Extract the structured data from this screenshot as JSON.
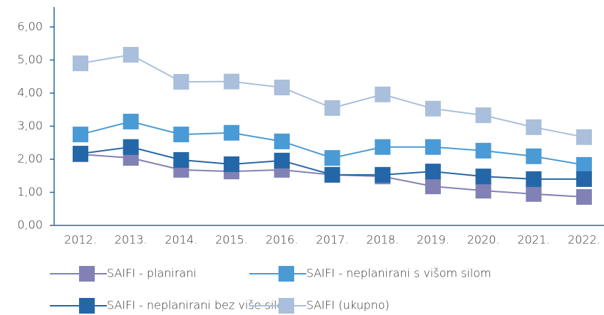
{
  "chart_data": {
    "type": "line",
    "categories": [
      "2012.",
      "2013.",
      "2014.",
      "2015.",
      "2016.",
      "2017.",
      "2018.",
      "2019.",
      "2020.",
      "2021.",
      "2022."
    ],
    "series": [
      {
        "name": "SAIFI - planirani",
        "color": "#8181b5",
        "values": [
          2.15,
          2.04,
          1.68,
          1.63,
          1.68,
          1.53,
          1.48,
          1.18,
          1.05,
          0.95,
          0.86
        ]
      },
      {
        "name": "SAIFI - neplanirani s višom silom",
        "color": "#4a9ad6",
        "values": [
          2.75,
          3.14,
          2.75,
          2.8,
          2.54,
          2.04,
          2.37,
          2.37,
          2.26,
          2.09,
          1.83
        ]
      },
      {
        "name": "SAIFI - neplanirani bez više silom",
        "color": "#2467a8",
        "values": [
          2.17,
          2.37,
          1.98,
          1.85,
          1.96,
          1.53,
          1.53,
          1.63,
          1.48,
          1.4,
          1.4
        ]
      },
      {
        "name": "SAIFI (ukupno)",
        "color": "#a9bfdb",
        "values": [
          4.9,
          5.16,
          4.34,
          4.35,
          4.17,
          3.55,
          3.96,
          3.53,
          3.33,
          2.97,
          2.67
        ]
      }
    ],
    "ylim": [
      0,
      6.6
    ],
    "yticks": [
      {
        "value": 0,
        "label": "0,00"
      },
      {
        "value": 1,
        "label": "1,00"
      },
      {
        "value": 2,
        "label": "2,00"
      },
      {
        "value": 3,
        "label": "3,00"
      },
      {
        "value": 4,
        "label": "4,00"
      },
      {
        "value": 5,
        "label": "5,00"
      },
      {
        "value": 6,
        "label": "6,00"
      }
    ]
  }
}
